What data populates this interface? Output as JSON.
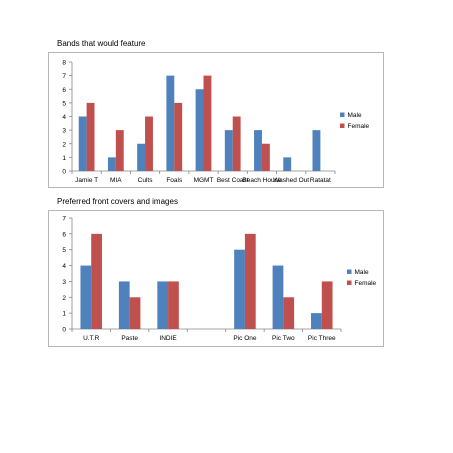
{
  "colors": {
    "male": "#4f81bd",
    "female": "#c0504d",
    "axis": "#868686",
    "frame": "#a6a6a6",
    "text": "#000000"
  },
  "chart_data": [
    {
      "type": "bar",
      "title": "Bands that would feature",
      "categories": [
        "Jamie T",
        "MIA",
        "Cults",
        "Foals",
        "MGMT",
        "Best Coast",
        "Beach House",
        "Washed Out",
        "Ratatat"
      ],
      "series": [
        {
          "name": "Male",
          "values": [
            4,
            1,
            2,
            7,
            6,
            3,
            3,
            1,
            3
          ]
        },
        {
          "name": "Female",
          "values": [
            5,
            3,
            4,
            5,
            7,
            4,
            2,
            0,
            0
          ]
        }
      ],
      "ylim": [
        0,
        8
      ],
      "yticks": [
        "0",
        "1",
        "2",
        "3",
        "4",
        "5",
        "6",
        "7",
        "8"
      ],
      "grid": false,
      "legend": "right"
    },
    {
      "type": "bar",
      "title": "Preferred front covers and images",
      "categories": [
        "U.T.R",
        "Paste",
        "INDIE",
        "",
        "Pic One",
        "Pic Two",
        "Pic Three"
      ],
      "series": [
        {
          "name": "Male",
          "values": [
            4,
            3,
            3,
            null,
            5,
            4,
            1
          ]
        },
        {
          "name": "Female",
          "values": [
            6,
            2,
            3,
            null,
            6,
            2,
            3
          ]
        }
      ],
      "ylim": [
        0,
        7
      ],
      "yticks": [
        "0",
        "1",
        "2",
        "3",
        "4",
        "5",
        "6",
        "7"
      ],
      "grid": false,
      "legend": "right"
    }
  ]
}
